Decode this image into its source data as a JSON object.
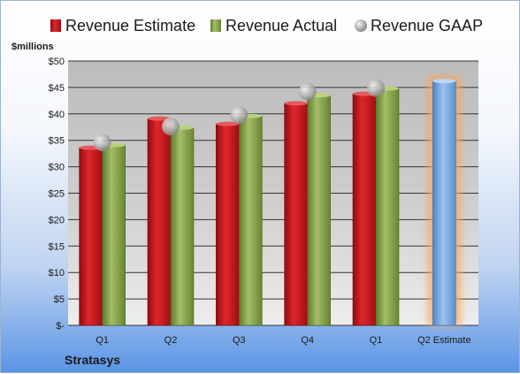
{
  "chart_data": {
    "type": "bar",
    "title": "",
    "unit_label": "$millions",
    "company": "Stratasys",
    "categories": [
      "Q1",
      "Q2",
      "Q3",
      "Q4",
      "Q1",
      "Q2 Estimate"
    ],
    "ylim": [
      0,
      50
    ],
    "yticks": [
      {
        "value": 0,
        "label": "$-"
      },
      {
        "value": 5,
        "label": "$5"
      },
      {
        "value": 10,
        "label": "$10"
      },
      {
        "value": 15,
        "label": "$15"
      },
      {
        "value": 20,
        "label": "$20"
      },
      {
        "value": 25,
        "label": "$25"
      },
      {
        "value": 30,
        "label": "$30"
      },
      {
        "value": 35,
        "label": "$35"
      },
      {
        "value": 40,
        "label": "$40"
      },
      {
        "value": 45,
        "label": "$45"
      },
      {
        "value": 50,
        "label": "$50"
      }
    ],
    "grid": true,
    "legend_position": "top",
    "series": [
      {
        "name": "Revenue Estimate",
        "kind": "bar",
        "color": "#c0141a",
        "values": [
          33.6,
          39.1,
          38.1,
          42.0,
          43.8,
          46.2
        ]
      },
      {
        "name": "Revenue Actual",
        "kind": "bar",
        "color": "#7d9a40",
        "values": [
          34.1,
          37.4,
          39.6,
          43.5,
          44.8,
          null
        ]
      },
      {
        "name": "Revenue GAAP",
        "kind": "marker",
        "color": "#b8b8b8",
        "values": [
          34.6,
          37.6,
          39.8,
          44.2,
          44.9,
          null
        ]
      }
    ],
    "estimate_bar_color": "#6f9fd8",
    "estimate_highlight_color": "#f5a85a"
  }
}
